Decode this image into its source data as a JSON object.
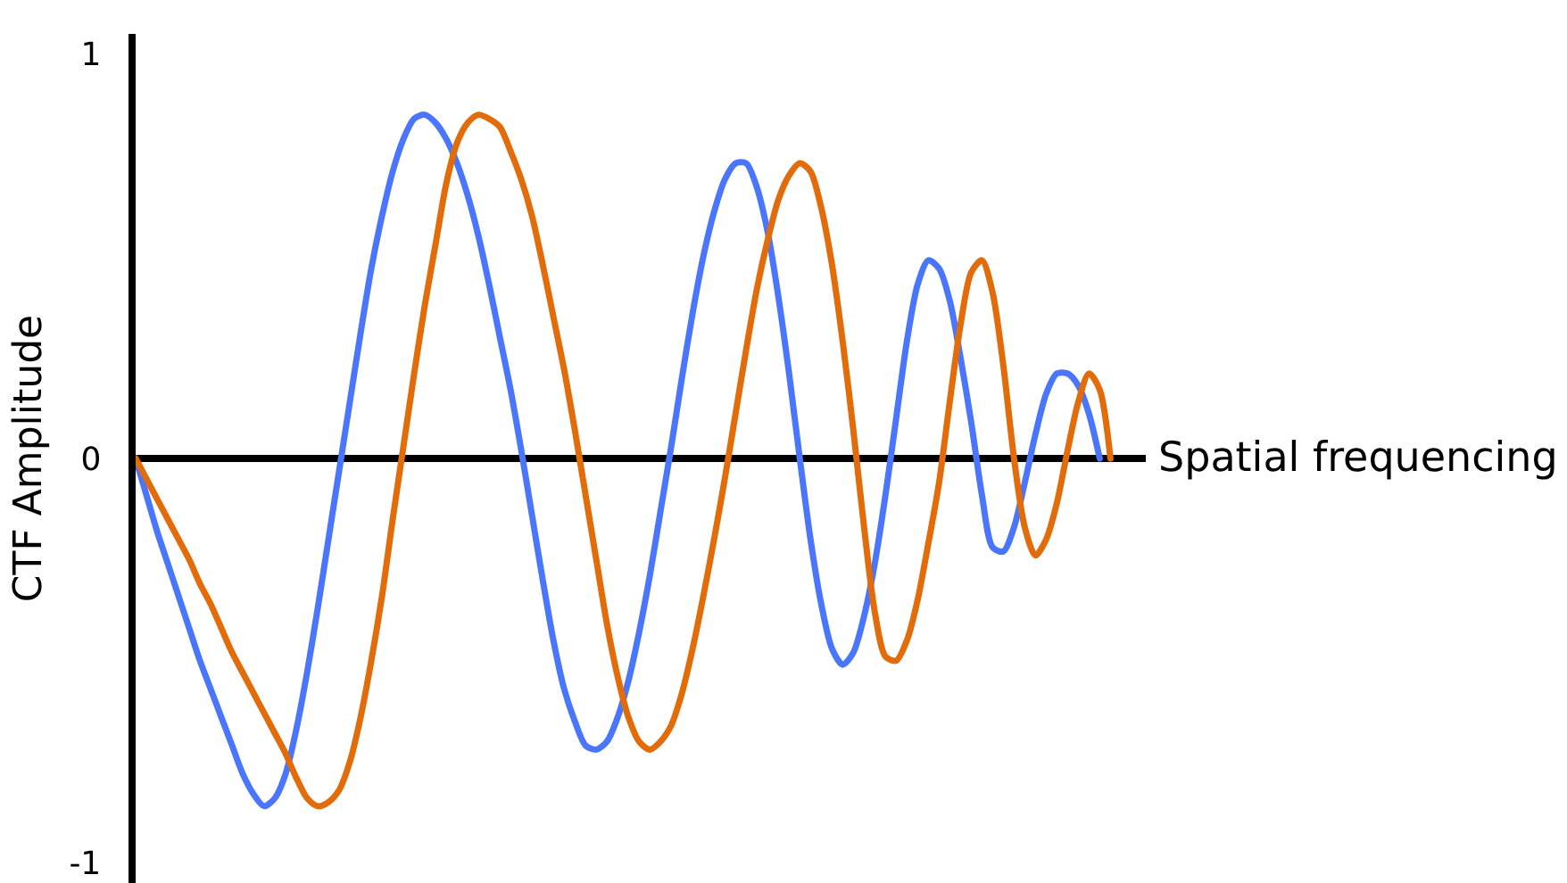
{
  "chart_data": {
    "type": "line",
    "xlabel": "Spatial frequencing",
    "ylabel": "CTF Amplitude",
    "categories": [
      null,
      null,
      null,
      null,
      null,
      null,
      null,
      null,
      null,
      null,
      null,
      null,
      null,
      null,
      null,
      null,
      null,
      null,
      null,
      null,
      null,
      null,
      null,
      null,
      null,
      null,
      null,
      null,
      null,
      null,
      null,
      null,
      null,
      null,
      null,
      null,
      null,
      null,
      null,
      null,
      null,
      null,
      null,
      null,
      null,
      null,
      null,
      null,
      null,
      null,
      null,
      null,
      null,
      null,
      null,
      null,
      null,
      null,
      null,
      null,
      null,
      null,
      null,
      null,
      null,
      null,
      null,
      null,
      null,
      null,
      null,
      null,
      null,
      null,
      null,
      null,
      null,
      null,
      null,
      null,
      null,
      null,
      null,
      null,
      null,
      null,
      null,
      null,
      null,
      null,
      null,
      null
    ],
    "series": [
      {
        "color": "#4a76fd",
        "values": [
          0,
          -0.09,
          -0.18,
          -0.26,
          -0.34,
          -0.42,
          -0.5,
          -0.57,
          -0.64,
          -0.71,
          -0.78,
          -0.83,
          -0.86,
          -0.84,
          -0.78,
          -0.67,
          -0.53,
          -0.37,
          -0.2,
          -0.03,
          0.14,
          0.31,
          0.47,
          0.6,
          0.71,
          0.79,
          0.84,
          0.85,
          0.83,
          0.79,
          0.73,
          0.65,
          0.55,
          0.43,
          0.3,
          0.17,
          0.02,
          -0.14,
          -0.3,
          -0.45,
          -0.57,
          -0.65,
          -0.71,
          -0.72,
          -0.7,
          -0.64,
          -0.55,
          -0.43,
          -0.29,
          -0.13,
          0.03,
          0.2,
          0.36,
          0.5,
          0.61,
          0.69,
          0.73,
          0.73,
          0.67,
          0.56,
          0.4,
          0.21,
          0,
          -0.2,
          -0.36,
          -0.47,
          -0.51,
          -0.48,
          -0.39,
          -0.26,
          -0.09,
          0.1,
          0.29,
          0.43,
          0.49,
          0.47,
          0.39,
          0.25,
          0.09,
          -0.09,
          -0.22,
          -0.23,
          -0.17,
          -0.06,
          0.06,
          0.16,
          0.21,
          0.21,
          0.18,
          0.11,
          0,
          null
        ]
      },
      {
        "color": "#e26b0a",
        "values": [
          0,
          -0.05,
          -0.1,
          -0.15,
          -0.2,
          -0.25,
          -0.31,
          -0.36,
          -0.42,
          -0.48,
          -0.53,
          -0.58,
          -0.63,
          -0.68,
          -0.73,
          -0.79,
          -0.84,
          -0.86,
          -0.85,
          -0.82,
          -0.75,
          -0.64,
          -0.5,
          -0.34,
          -0.15,
          0.03,
          0.21,
          0.38,
          0.53,
          0.68,
          0.78,
          0.83,
          0.85,
          0.84,
          0.82,
          0.76,
          0.69,
          0.6,
          0.48,
          0.35,
          0.22,
          0.07,
          -0.09,
          -0.25,
          -0.41,
          -0.54,
          -0.64,
          -0.7,
          -0.72,
          -0.7,
          -0.66,
          -0.58,
          -0.47,
          -0.34,
          -0.2,
          -0.05,
          0.11,
          0.27,
          0.42,
          0.54,
          0.64,
          0.7,
          0.73,
          0.71,
          0.62,
          0.48,
          0.29,
          0.07,
          -0.17,
          -0.38,
          -0.49,
          -0.5,
          -0.45,
          -0.35,
          -0.21,
          -0.06,
          0.14,
          0.33,
          0.46,
          0.49,
          0.41,
          0.23,
          0,
          -0.17,
          -0.24,
          -0.2,
          -0.11,
          0.02,
          0.14,
          0.21,
          0.17,
          0
        ]
      }
    ],
    "ylim": [
      -1.05,
      1.05
    ],
    "yticks": [
      -1,
      0,
      1
    ],
    "tick_labels": "y"
  }
}
